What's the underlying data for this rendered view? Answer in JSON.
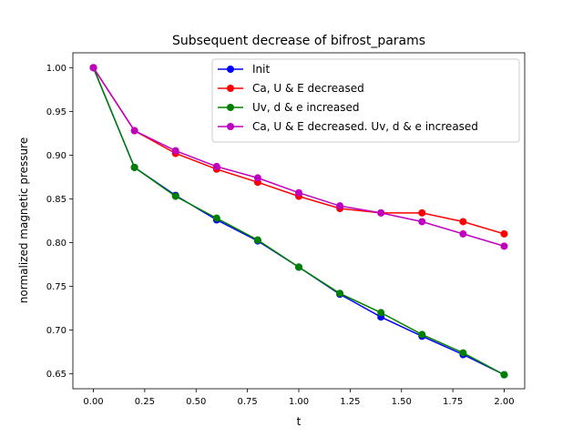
{
  "chart_data": {
    "type": "line",
    "title": "Subsequent decrease of bifrost_params",
    "xlabel": "t",
    "ylabel": "normalized magnetic pressure",
    "xlim": [
      -0.1,
      2.1
    ],
    "ylim": [
      0.633,
      1.017
    ],
    "x_ticks": [
      0.0,
      0.25,
      0.5,
      0.75,
      1.0,
      1.25,
      1.5,
      1.75,
      2.0
    ],
    "x_tick_labels": [
      "0.00",
      "0.25",
      "0.50",
      "0.75",
      "1.00",
      "1.25",
      "1.50",
      "1.75",
      "2.00"
    ],
    "y_ticks": [
      0.65,
      0.7,
      0.75,
      0.8,
      0.85,
      0.9,
      0.95,
      1.0
    ],
    "y_tick_labels": [
      "0.65",
      "0.70",
      "0.75",
      "0.80",
      "0.85",
      "0.90",
      "0.95",
      "1.00"
    ],
    "grid": false,
    "legend_position": "top-right",
    "x": [
      0.0,
      0.2,
      0.4,
      0.6,
      0.8,
      1.0,
      1.2,
      1.4,
      1.6,
      1.8,
      2.0
    ],
    "series": [
      {
        "name": "Init",
        "color": "#0000ff",
        "values": [
          1.0,
          0.886,
          0.854,
          0.826,
          0.802,
          0.772,
          0.741,
          0.715,
          0.693,
          0.672,
          0.649
        ]
      },
      {
        "name": "Ca, U & E decreased",
        "color": "#ff0000",
        "values": [
          1.0,
          0.928,
          0.902,
          0.884,
          0.869,
          0.853,
          0.839,
          0.834,
          0.834,
          0.824,
          0.81
        ]
      },
      {
        "name": "Uv, d & e increased",
        "color": "#008000",
        "values": [
          1.0,
          0.886,
          0.853,
          0.828,
          0.803,
          0.772,
          0.742,
          0.72,
          0.695,
          0.674,
          0.649
        ]
      },
      {
        "name": "Ca, U & E decreased. Uv, d & e increased",
        "color": "#bf00bf",
        "values": [
          1.0,
          0.928,
          0.905,
          0.887,
          0.874,
          0.857,
          0.842,
          0.834,
          0.824,
          0.81,
          0.796
        ]
      }
    ]
  }
}
